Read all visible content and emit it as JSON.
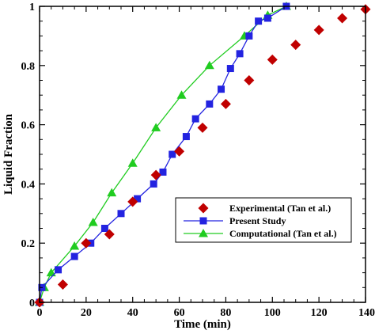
{
  "chart_data": {
    "type": "scatter",
    "title": "",
    "xlabel": "Time (min)",
    "ylabel": "Liquid Fraction",
    "xlim": [
      0,
      140
    ],
    "ylim": [
      0,
      1
    ],
    "xticks": [
      0,
      20,
      40,
      60,
      80,
      100,
      120,
      140
    ],
    "yticks": [
      0,
      0.2,
      0.4,
      0.6,
      0.8,
      1
    ],
    "xtick_labels": [
      "0",
      "20",
      "40",
      "60",
      "80",
      "100",
      "120",
      "140"
    ],
    "ytick_labels": [
      "0",
      "0.2",
      "0.4",
      "0.6",
      "0.8",
      "1"
    ],
    "grid": false,
    "legend_position": "center-right",
    "series": [
      {
        "name": "Experimental (Tan et al.)",
        "marker": "diamond",
        "line": false,
        "color": "#c00000",
        "x": [
          0,
          10,
          20,
          30,
          40,
          50,
          60,
          70,
          80,
          90,
          100,
          110,
          120,
          130,
          140
        ],
        "y": [
          0,
          0.06,
          0.2,
          0.23,
          0.34,
          0.43,
          0.51,
          0.59,
          0.67,
          0.75,
          0.82,
          0.87,
          0.92,
          0.96,
          0.99
        ]
      },
      {
        "name": "Present Study",
        "marker": "square",
        "line": true,
        "color": "#2323e0",
        "x": [
          0,
          1,
          8,
          15,
          22,
          28,
          35,
          42,
          49,
          53,
          57,
          63,
          67,
          73,
          78,
          82,
          86,
          90,
          94,
          98,
          106
        ],
        "y": [
          0,
          0.05,
          0.11,
          0.155,
          0.2,
          0.25,
          0.3,
          0.35,
          0.4,
          0.44,
          0.5,
          0.56,
          0.62,
          0.67,
          0.72,
          0.79,
          0.84,
          0.9,
          0.95,
          0.96,
          1.0
        ]
      },
      {
        "name": "Computational (Tan et al.)",
        "marker": "triangle",
        "line": true,
        "color": "#20cc20",
        "x": [
          0,
          2,
          5,
          15,
          23,
          31,
          40,
          50,
          61,
          73,
          88,
          98,
          106
        ],
        "y": [
          0,
          0.05,
          0.1,
          0.19,
          0.27,
          0.37,
          0.47,
          0.59,
          0.7,
          0.8,
          0.9,
          0.97,
          1.0
        ]
      }
    ]
  }
}
